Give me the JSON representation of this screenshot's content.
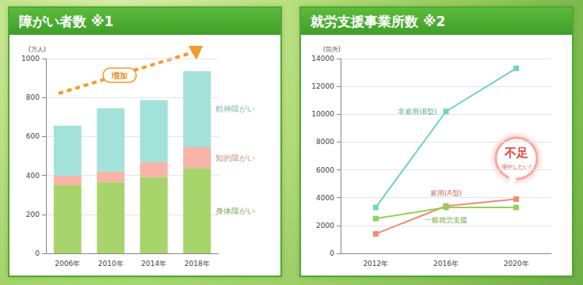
{
  "chart_data": [
    {
      "type": "bar",
      "title": "障がい者数 ※1",
      "ylabel": "(万人)",
      "categories": [
        "2006年",
        "2010年",
        "2014年",
        "2018年"
      ],
      "series": [
        {
          "name": "身体障がい",
          "color": "#a8d46c",
          "values": [
            350,
            365,
            392,
            438
          ]
        },
        {
          "name": "知的障がい",
          "color": "#f8b4a6",
          "values": [
            48,
            55,
            76,
            107
          ]
        },
        {
          "name": "精神障がい",
          "color": "#a3e2d9",
          "values": [
            257,
            325,
            320,
            390
          ]
        }
      ],
      "stacked": true,
      "ylim": [
        0,
        1000
      ],
      "yticks": [
        0,
        200,
        400,
        600,
        800,
        1000
      ],
      "grid": true,
      "annotations": [
        "増加"
      ]
    },
    {
      "type": "line",
      "title": "就労支援事業所数 ※2",
      "ylabel": "(箇所)",
      "categories": [
        "2012年",
        "2016年",
        "2020年"
      ],
      "series": [
        {
          "name": "非雇用(B型)",
          "color": "#6fd3c3",
          "values": [
            3300,
            10200,
            13300
          ]
        },
        {
          "name": "雇用(A型)",
          "color": "#f28b6e",
          "values": [
            1400,
            3400,
            3900
          ]
        },
        {
          "name": "一般就労支援",
          "color": "#8fd35a",
          "values": [
            2500,
            3300,
            3300
          ]
        }
      ],
      "marker": "square",
      "line_style": "solid",
      "ylim": [
        0,
        14000
      ],
      "yticks": [
        0,
        2000,
        4000,
        6000,
        8000,
        10000,
        12000,
        14000
      ],
      "grid": true,
      "annotations": [
        "不足",
        "増やしたい!"
      ]
    }
  ]
}
